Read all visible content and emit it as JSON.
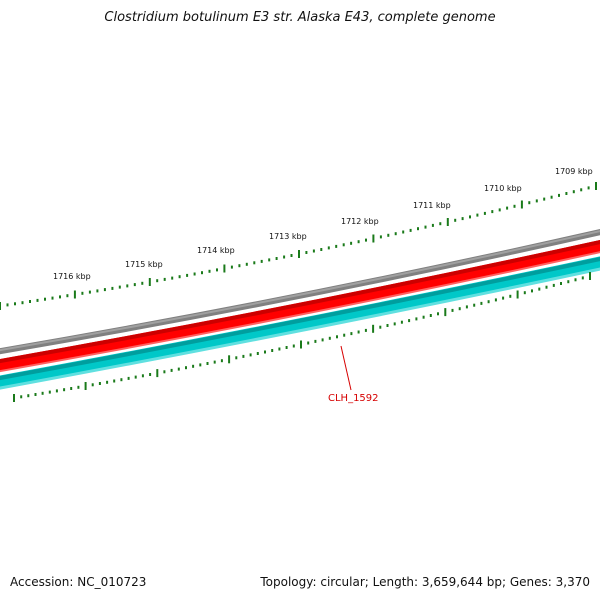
{
  "title": "Clostridium botulinum E3 str. Alaska E43, complete genome",
  "accession_text": "Accession: NC_010723",
  "summary_text": "Topology: circular; Length: 3,659,644 bp; Genes: 3,370",
  "kbp_labels": [
    "1709 kbp",
    "1710 kbp",
    "1711 kbp",
    "1712 kbp",
    "1713 kbp",
    "1714 kbp",
    "1715 kbp",
    "1716 kbp"
  ],
  "gene_label": "CLH_1592",
  "colors": {
    "backbone": "#808080",
    "forward_gene": "#ff0000",
    "reverse_gene": "#00c8c8",
    "tick": "#1a7a1a",
    "gene_label": "#d60000"
  }
}
